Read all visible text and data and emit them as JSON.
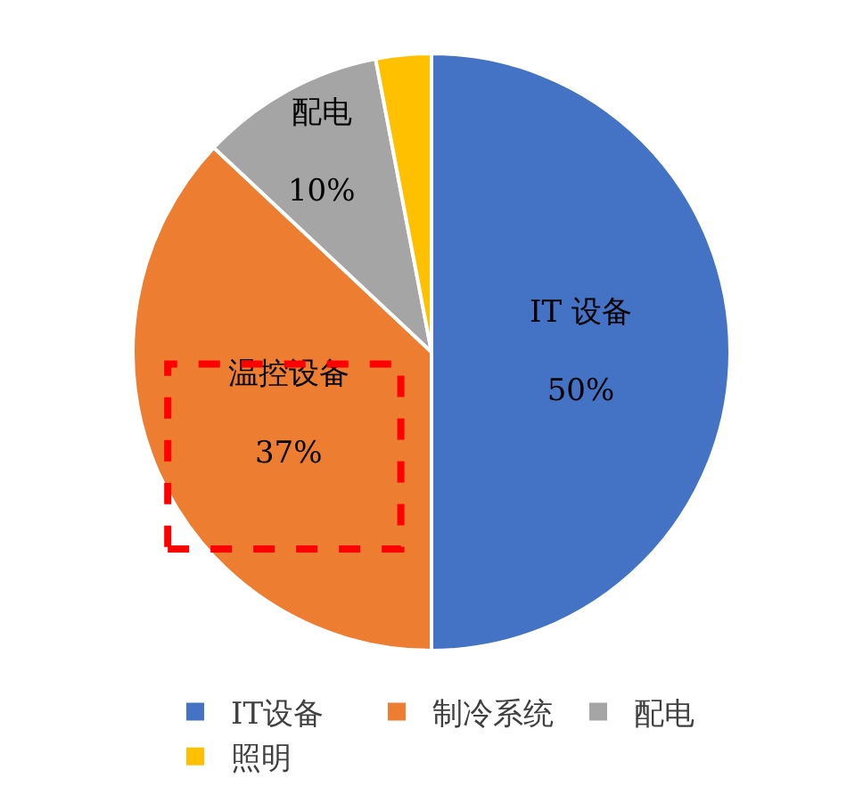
{
  "chart_data": {
    "type": "pie",
    "categories": [
      "IT设备",
      "制冷系统",
      "配电",
      "照明"
    ],
    "values": [
      50,
      37,
      10,
      3
    ],
    "colors": [
      "#4472c4",
      "#ed7d31",
      "#a5a5a5",
      "#ffc000"
    ],
    "value_labels": [
      "IT 设备\n50%",
      "温控设备\n37%",
      "配电\n10%",
      null
    ],
    "legend": "bottom"
  }
}
